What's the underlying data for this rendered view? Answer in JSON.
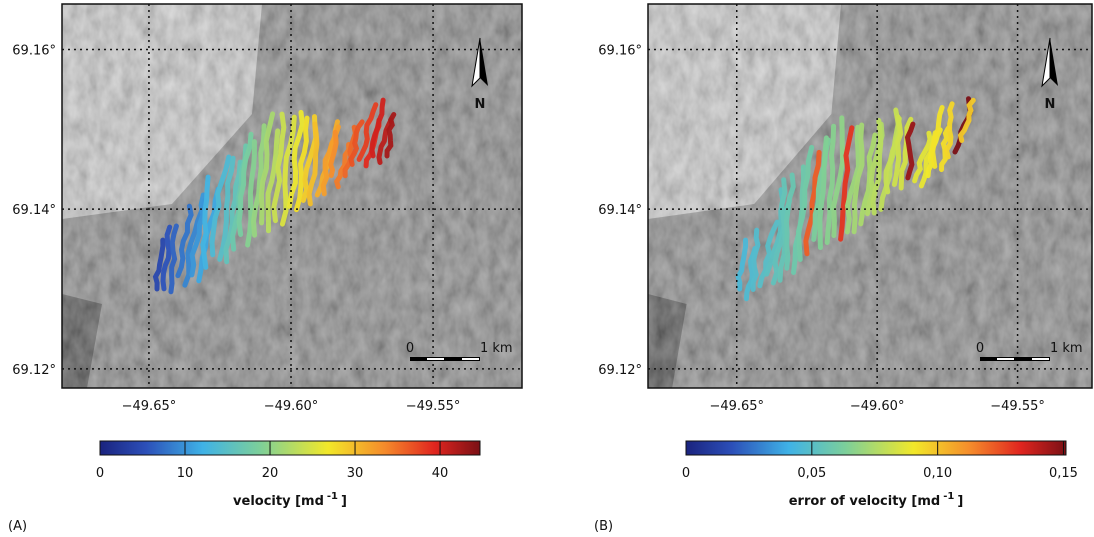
{
  "panels": [
    {
      "label": "(A)",
      "lon_range": [
        -49.6806,
        -49.5187
      ],
      "lat_range": [
        69.1176,
        69.1657
      ],
      "lat_ticks": [
        {
          "value": 69.16,
          "label": "69.16°"
        },
        {
          "value": 69.14,
          "label": "69.14°"
        },
        {
          "value": 69.12,
          "label": "69.12°"
        }
      ],
      "lon_ticks": [
        {
          "value": -49.65,
          "label": "−49.65°"
        },
        {
          "value": -49.6,
          "label": "−49.60°"
        },
        {
          "value": -49.55,
          "label": "−49.55°"
        }
      ],
      "north": "N",
      "scale_start": "0",
      "scale_end": "1 km",
      "colorbar": {
        "title": "velocity [md",
        "superscript": "-1",
        "title_end": "]",
        "range": [
          0,
          44.7
        ],
        "ticks": [
          0,
          10,
          20,
          30,
          40
        ]
      }
    },
    {
      "label": "(B)",
      "lon_range": [
        -49.6816,
        -49.5235
      ],
      "lat_range": [
        69.1176,
        69.1657
      ],
      "lat_ticks": [
        {
          "value": 69.16,
          "label": "69.16°"
        },
        {
          "value": 69.14,
          "label": "69.14°"
        },
        {
          "value": 69.12,
          "label": "69.12°"
        }
      ],
      "lon_ticks": [
        {
          "value": -49.65,
          "label": "−49.65°"
        },
        {
          "value": -49.6,
          "label": "−49.60°"
        },
        {
          "value": -49.55,
          "label": "−49.55°"
        }
      ],
      "north": "N",
      "scale_start": "0",
      "scale_end": "1 km",
      "colorbar": {
        "title": "error of velocity [md",
        "superscript": "-1",
        "title_end": "]",
        "range": [
          0,
          0.151
        ],
        "ticks": [
          0,
          {
            "value": 0.05,
            "label": "0,05"
          },
          {
            "value": 0.1,
            "label": "0,10"
          },
          {
            "value": 0.15,
            "label": "0,15"
          }
        ]
      }
    }
  ]
}
